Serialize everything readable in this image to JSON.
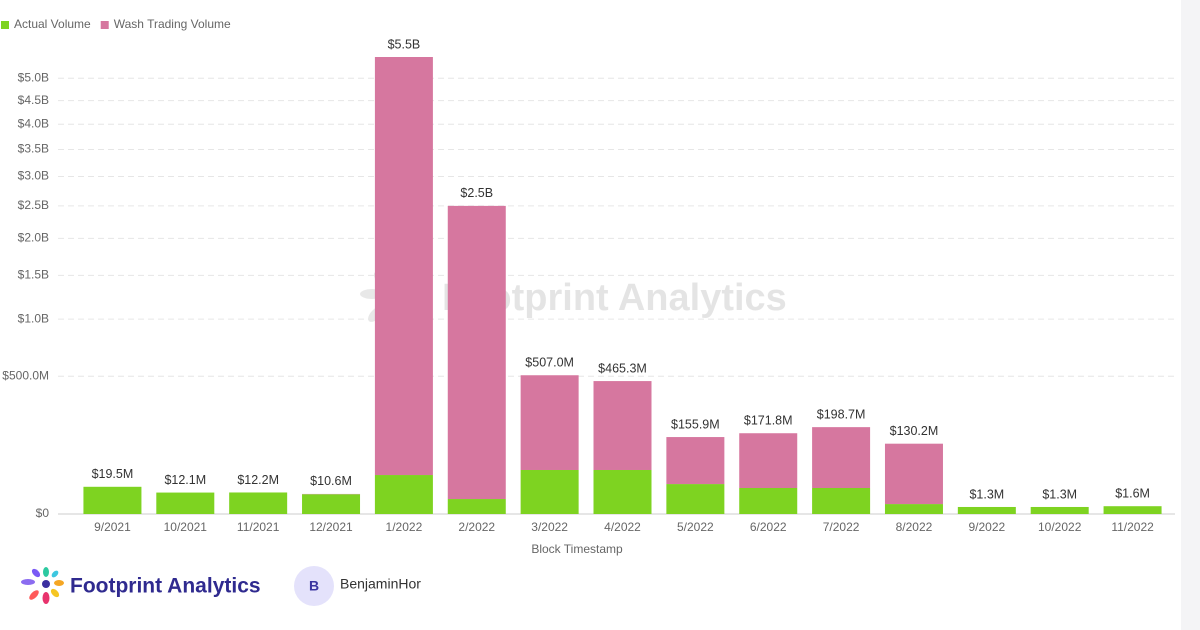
{
  "chart_data": {
    "type": "bar",
    "stacked": true,
    "scale": "sqrt",
    "grid": true,
    "legend": "top-left",
    "x_label": "Block Timestamp",
    "categories": [
      "9/2021",
      "10/2021",
      "11/2021",
      "12/2021",
      "1/2022",
      "2/2022",
      "3/2022",
      "4/2022",
      "5/2022",
      "6/2022",
      "7/2022",
      "8/2022",
      "9/2022",
      "10/2022",
      "11/2022"
    ],
    "series": [
      {
        "name": "Actual Volume",
        "color": "#7ed321",
        "values": [
          19500000,
          12100000,
          12200000,
          10300000,
          40000000,
          5900000,
          51000000,
          51000000,
          23600000,
          17800000,
          17800000,
          2600000,
          1300000,
          1300000,
          1600000
        ]
      },
      {
        "name": "Wash Trading Volume",
        "color": "#d6779f",
        "values": [
          0,
          0,
          0,
          300000,
          5460000000,
          2494100000,
          456000000,
          414300000,
          132300000,
          154000000,
          180900000,
          127600000,
          0,
          0,
          0
        ]
      }
    ],
    "totals": [
      19500000,
      12100000,
      12200000,
      10600000,
      5500000000,
      2500000000,
      507000000,
      465300000,
      155900000,
      171800000,
      198700000,
      130200000,
      1300000,
      1300000,
      1600000
    ],
    "value_labels": [
      "$19.5M",
      "$12.1M",
      "$12.2M",
      "$10.6M",
      "$5.5B",
      "$2.5B",
      "$507.0M",
      "$465.3M",
      "$155.9M",
      "$171.8M",
      "$198.7M",
      "$130.2M",
      "$1.3M",
      "$1.3M",
      "$1.6M"
    ],
    "ylim": [
      0,
      5500000000
    ],
    "yticks": [
      {
        "value": 0,
        "label": "$0"
      },
      {
        "value": 500000000,
        "label": "$500.0M"
      },
      {
        "value": 1000000000,
        "label": "$1.0B"
      },
      {
        "value": 1500000000,
        "label": "$1.5B"
      },
      {
        "value": 2000000000,
        "label": "$2.0B"
      },
      {
        "value": 2500000000,
        "label": "$2.5B"
      },
      {
        "value": 3000000000,
        "label": "$3.0B"
      },
      {
        "value": 3500000000,
        "label": "$3.5B"
      },
      {
        "value": 4000000000,
        "label": "$4.0B"
      },
      {
        "value": 4500000000,
        "label": "$4.5B"
      },
      {
        "value": 5000000000,
        "label": "$5.0B"
      }
    ]
  },
  "watermark": "Footprint Analytics",
  "footer": {
    "brand": "Footprint Analytics",
    "avatar": "B",
    "author": "BenjaminHor"
  }
}
